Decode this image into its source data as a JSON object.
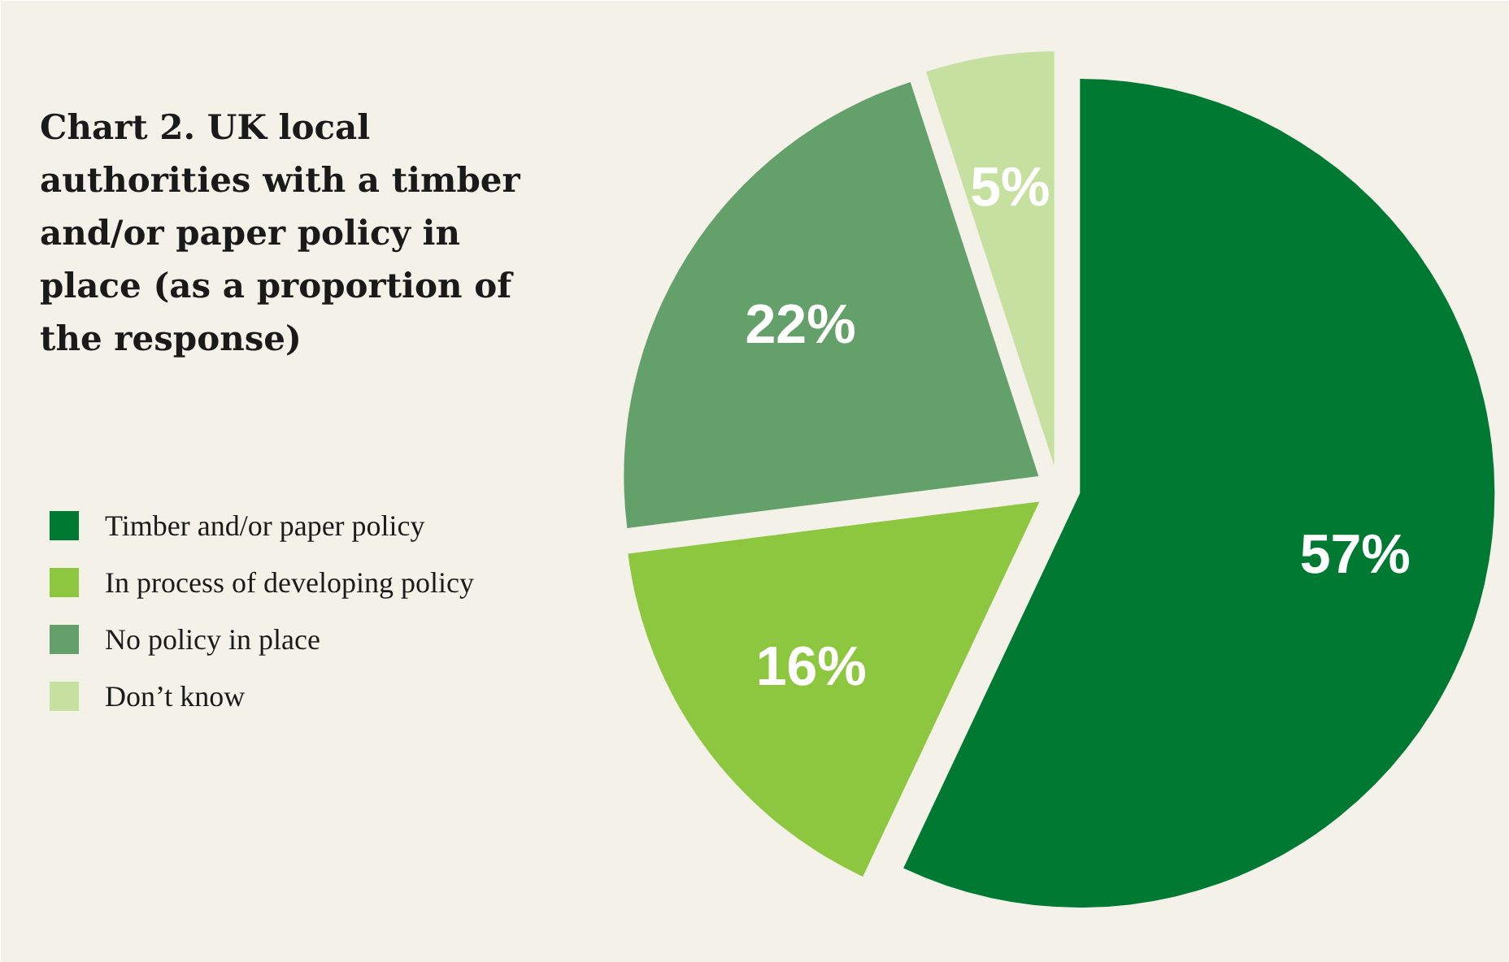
{
  "chart_data": {
    "type": "pie",
    "title": "Chart 2. UK local authorities with a timber and/or paper policy in place (as a proportion of the response)",
    "categories": [
      "Timber and/or paper policy",
      "In process of developing policy",
      "No policy in place",
      "Don’t know"
    ],
    "values": [
      57,
      16,
      22,
      5
    ],
    "colors": [
      "#007a33",
      "#8dc63f",
      "#63a06a",
      "#c5e09f"
    ],
    "value_labels": [
      "57%",
      "16%",
      "22%",
      "5%"
    ],
    "legend": "left"
  }
}
